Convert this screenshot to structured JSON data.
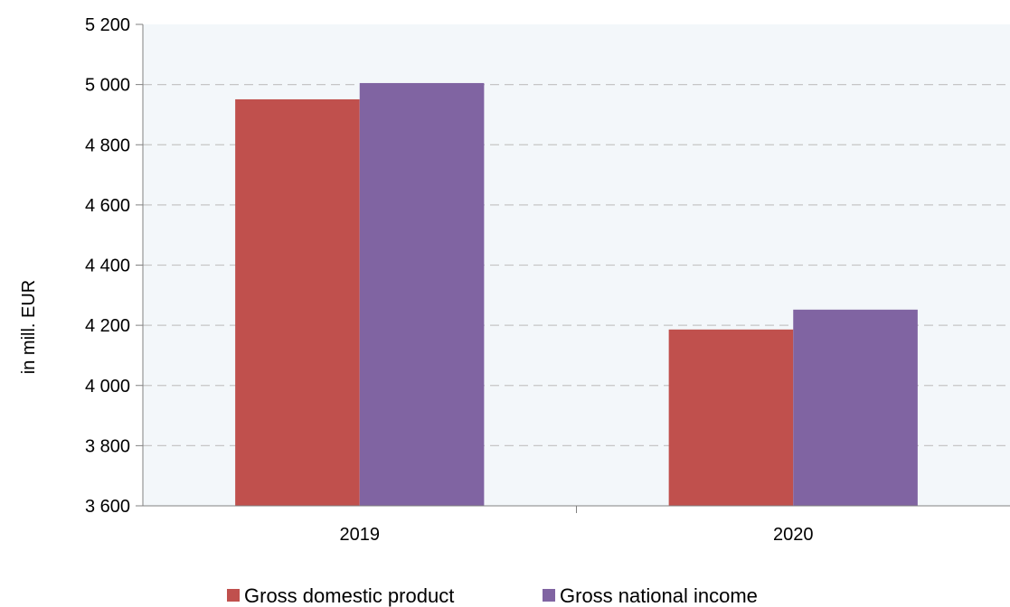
{
  "chart_data": {
    "type": "bar",
    "title": "",
    "xlabel": "",
    "ylabel": "in mill. EUR",
    "categories": [
      "2019",
      "2020"
    ],
    "series": [
      {
        "name": "Gross domestic product",
        "values": [
          4951,
          4186
        ],
        "color": "#c0504d"
      },
      {
        "name": "Gross national income",
        "values": [
          5005,
          4252
        ],
        "color": "#8064a2"
      }
    ],
    "ylim": [
      3600,
      5200
    ],
    "yticks": [
      3600,
      3800,
      4000,
      4200,
      4400,
      4600,
      4800,
      5000,
      5200
    ],
    "ytick_labels": [
      "3 600",
      "3 800",
      "4 000",
      "4 200",
      "4 400",
      "4 600",
      "4 800",
      "5 000",
      "5 200"
    ],
    "grid": true,
    "plot_background": "#f3f7fa",
    "legend_position": "bottom"
  }
}
